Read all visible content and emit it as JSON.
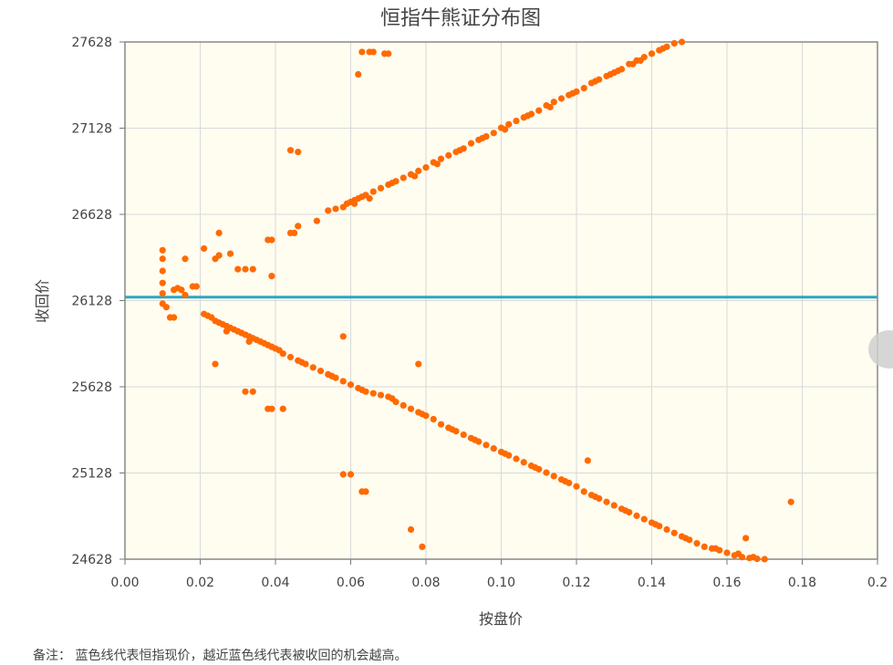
{
  "chart_data": {
    "type": "scatter",
    "title": "恒指牛熊证分布图",
    "xlabel": "按盘价",
    "ylabel": "收回价",
    "xlim": [
      0,
      0.2
    ],
    "ylim": [
      24628,
      27628
    ],
    "x_ticks": [
      "0.00",
      "0.02",
      "0.04",
      "0.06",
      "0.08",
      "0.10",
      "0.12",
      "0.14",
      "0.16",
      "0.18",
      "0.2"
    ],
    "y_ticks": [
      "24628",
      "25128",
      "25628",
      "26128",
      "26628",
      "27128",
      "27628"
    ],
    "grid": true,
    "reference_line": {
      "y": 26148,
      "color": "#2ea5c2"
    },
    "series_color": "#ff6a00",
    "background": "#fffcf0",
    "series": [
      {
        "points": [
          [
            0.01,
            26420
          ],
          [
            0.01,
            26370
          ],
          [
            0.01,
            26300
          ],
          [
            0.01,
            26230
          ],
          [
            0.01,
            26170
          ],
          [
            0.01,
            26110
          ],
          [
            0.011,
            26090
          ],
          [
            0.012,
            26030
          ],
          [
            0.013,
            26030
          ],
          [
            0.013,
            26190
          ],
          [
            0.014,
            26200
          ],
          [
            0.015,
            26190
          ],
          [
            0.016,
            26160
          ],
          [
            0.016,
            26370
          ],
          [
            0.018,
            26210
          ],
          [
            0.019,
            26210
          ],
          [
            0.021,
            26430
          ],
          [
            0.024,
            26370
          ],
          [
            0.025,
            26390
          ],
          [
            0.025,
            26520
          ],
          [
            0.028,
            26400
          ],
          [
            0.03,
            26310
          ],
          [
            0.032,
            26310
          ],
          [
            0.034,
            26310
          ],
          [
            0.038,
            26480
          ],
          [
            0.039,
            26270
          ],
          [
            0.039,
            26480
          ],
          [
            0.044,
            26520
          ],
          [
            0.045,
            26520
          ],
          [
            0.046,
            26560
          ],
          [
            0.051,
            26590
          ],
          [
            0.044,
            27000
          ],
          [
            0.046,
            26990
          ],
          [
            0.062,
            27440
          ],
          [
            0.063,
            27570
          ],
          [
            0.065,
            27570
          ],
          [
            0.066,
            27570
          ],
          [
            0.069,
            27560
          ],
          [
            0.07,
            27560
          ],
          [
            0.054,
            26650
          ],
          [
            0.056,
            26660
          ],
          [
            0.058,
            26670
          ],
          [
            0.059,
            26690
          ],
          [
            0.06,
            26700
          ],
          [
            0.061,
            26710
          ],
          [
            0.062,
            26720
          ],
          [
            0.063,
            26730
          ],
          [
            0.064,
            26740
          ],
          [
            0.066,
            26760
          ],
          [
            0.068,
            26780
          ],
          [
            0.07,
            26800
          ],
          [
            0.072,
            26820
          ],
          [
            0.074,
            26840
          ],
          [
            0.076,
            26860
          ],
          [
            0.078,
            26880
          ],
          [
            0.08,
            26900
          ],
          [
            0.082,
            26930
          ],
          [
            0.084,
            26950
          ],
          [
            0.086,
            26970
          ],
          [
            0.088,
            26990
          ],
          [
            0.09,
            27010
          ],
          [
            0.092,
            27040
          ],
          [
            0.094,
            27060
          ],
          [
            0.096,
            27080
          ],
          [
            0.098,
            27100
          ],
          [
            0.1,
            27130
          ],
          [
            0.102,
            27150
          ],
          [
            0.104,
            27170
          ],
          [
            0.106,
            27190
          ],
          [
            0.108,
            27210
          ],
          [
            0.11,
            27230
          ],
          [
            0.112,
            27260
          ],
          [
            0.114,
            27280
          ],
          [
            0.116,
            27300
          ],
          [
            0.118,
            27320
          ],
          [
            0.12,
            27340
          ],
          [
            0.122,
            27360
          ],
          [
            0.124,
            27390
          ],
          [
            0.126,
            27410
          ],
          [
            0.128,
            27430
          ],
          [
            0.13,
            27450
          ],
          [
            0.132,
            27470
          ],
          [
            0.134,
            27500
          ],
          [
            0.136,
            27520
          ],
          [
            0.138,
            27540
          ],
          [
            0.14,
            27560
          ],
          [
            0.142,
            27580
          ],
          [
            0.144,
            27600
          ],
          [
            0.146,
            27620
          ],
          [
            0.148,
            27628
          ],
          [
            0.061,
            26690
          ],
          [
            0.065,
            26720
          ],
          [
            0.071,
            26810
          ],
          [
            0.077,
            26850
          ],
          [
            0.083,
            26920
          ],
          [
            0.089,
            27000
          ],
          [
            0.095,
            27070
          ],
          [
            0.101,
            27120
          ],
          [
            0.107,
            27200
          ],
          [
            0.113,
            27250
          ],
          [
            0.119,
            27330
          ],
          [
            0.125,
            27400
          ],
          [
            0.131,
            27460
          ],
          [
            0.137,
            27520
          ],
          [
            0.143,
            27590
          ],
          [
            0.129,
            27440
          ],
          [
            0.135,
            27500
          ],
          [
            0.021,
            26050
          ],
          [
            0.022,
            26040
          ],
          [
            0.023,
            26030
          ],
          [
            0.024,
            26010
          ],
          [
            0.025,
            26000
          ],
          [
            0.026,
            25990
          ],
          [
            0.027,
            25980
          ],
          [
            0.028,
            25970
          ],
          [
            0.029,
            25960
          ],
          [
            0.03,
            25950
          ],
          [
            0.031,
            25940
          ],
          [
            0.032,
            25930
          ],
          [
            0.033,
            25920
          ],
          [
            0.034,
            25910
          ],
          [
            0.035,
            25900
          ],
          [
            0.036,
            25890
          ],
          [
            0.037,
            25880
          ],
          [
            0.038,
            25870
          ],
          [
            0.039,
            25860
          ],
          [
            0.04,
            25850
          ],
          [
            0.042,
            25820
          ],
          [
            0.044,
            25800
          ],
          [
            0.046,
            25780
          ],
          [
            0.048,
            25760
          ],
          [
            0.05,
            25740
          ],
          [
            0.052,
            25720
          ],
          [
            0.054,
            25700
          ],
          [
            0.056,
            25680
          ],
          [
            0.058,
            25660
          ],
          [
            0.06,
            25640
          ],
          [
            0.062,
            25620
          ],
          [
            0.064,
            25600
          ],
          [
            0.066,
            25590
          ],
          [
            0.068,
            25580
          ],
          [
            0.07,
            25570
          ],
          [
            0.072,
            25540
          ],
          [
            0.074,
            25520
          ],
          [
            0.076,
            25500
          ],
          [
            0.078,
            25480
          ],
          [
            0.08,
            25460
          ],
          [
            0.082,
            25440
          ],
          [
            0.084,
            25410
          ],
          [
            0.086,
            25390
          ],
          [
            0.088,
            25370
          ],
          [
            0.09,
            25350
          ],
          [
            0.092,
            25330
          ],
          [
            0.094,
            25310
          ],
          [
            0.096,
            25290
          ],
          [
            0.098,
            25270
          ],
          [
            0.1,
            25250
          ],
          [
            0.102,
            25230
          ],
          [
            0.104,
            25210
          ],
          [
            0.106,
            25190
          ],
          [
            0.108,
            25170
          ],
          [
            0.11,
            25150
          ],
          [
            0.112,
            25130
          ],
          [
            0.114,
            25110
          ],
          [
            0.116,
            25090
          ],
          [
            0.118,
            25070
          ],
          [
            0.12,
            25050
          ],
          [
            0.122,
            25020
          ],
          [
            0.124,
            25000
          ],
          [
            0.126,
            24980
          ],
          [
            0.128,
            24960
          ],
          [
            0.13,
            24940
          ],
          [
            0.132,
            24920
          ],
          [
            0.134,
            24900
          ],
          [
            0.136,
            24880
          ],
          [
            0.138,
            24860
          ],
          [
            0.14,
            24840
          ],
          [
            0.142,
            24820
          ],
          [
            0.144,
            24800
          ],
          [
            0.146,
            24780
          ],
          [
            0.148,
            24760
          ],
          [
            0.15,
            24740
          ],
          [
            0.152,
            24720
          ],
          [
            0.154,
            24700
          ],
          [
            0.156,
            24690
          ],
          [
            0.158,
            24680
          ],
          [
            0.16,
            24665
          ],
          [
            0.162,
            24650
          ],
          [
            0.164,
            24640
          ],
          [
            0.166,
            24635
          ],
          [
            0.168,
            24630
          ],
          [
            0.17,
            24628
          ],
          [
            0.027,
            25950
          ],
          [
            0.033,
            25890
          ],
          [
            0.041,
            25840
          ],
          [
            0.047,
            25770
          ],
          [
            0.055,
            25690
          ],
          [
            0.063,
            25610
          ],
          [
            0.071,
            25560
          ],
          [
            0.079,
            25470
          ],
          [
            0.087,
            25380
          ],
          [
            0.093,
            25320
          ],
          [
            0.101,
            25240
          ],
          [
            0.109,
            25160
          ],
          [
            0.117,
            25080
          ],
          [
            0.125,
            24990
          ],
          [
            0.133,
            24910
          ],
          [
            0.141,
            24830
          ],
          [
            0.149,
            24750
          ],
          [
            0.157,
            24690
          ],
          [
            0.163,
            24660
          ],
          [
            0.167,
            24640
          ],
          [
            0.024,
            25760
          ],
          [
            0.032,
            25600
          ],
          [
            0.034,
            25600
          ],
          [
            0.038,
            25500
          ],
          [
            0.039,
            25500
          ],
          [
            0.042,
            25500
          ],
          [
            0.058,
            25120
          ],
          [
            0.06,
            25120
          ],
          [
            0.063,
            25020
          ],
          [
            0.064,
            25020
          ],
          [
            0.076,
            24800
          ],
          [
            0.079,
            24700
          ],
          [
            0.078,
            25760
          ],
          [
            0.058,
            25920
          ],
          [
            0.123,
            25200
          ],
          [
            0.165,
            24750
          ],
          [
            0.177,
            24960
          ]
        ]
      }
    ]
  },
  "note": "备注： 蓝色线代表恒指现价，越近蓝色线代表被收回的机会越高。"
}
